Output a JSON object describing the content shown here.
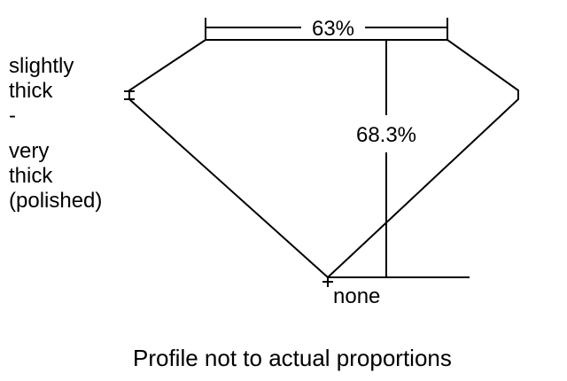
{
  "girdle_label": [
    "slightly",
    "thick",
    "-",
    "very",
    "thick",
    "(polished)"
  ],
  "table_percent": "63%",
  "depth_percent": "68.3%",
  "culet_label": "none",
  "caption": "Profile not to actual proportions"
}
